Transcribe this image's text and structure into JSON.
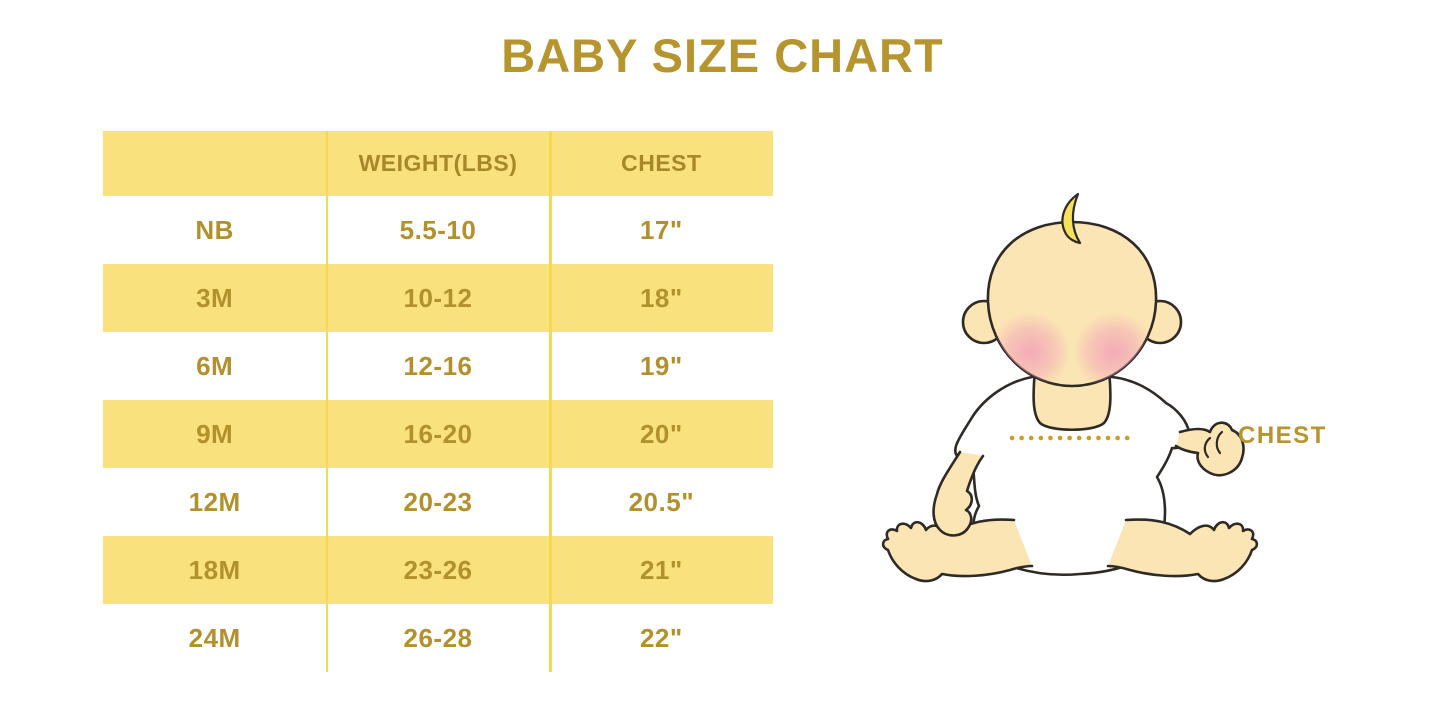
{
  "title": "BABY SIZE CHART",
  "colors": {
    "title_gold": "#B6952E",
    "header_text": "#A8872B",
    "cell_text": "#B2912C",
    "row_yellow": "#F9E17D",
    "divider_yellow": "#F8D84F",
    "dot_gold": "#C79E1E",
    "skin": "#FBE5B4",
    "hair": "#F6E15C",
    "blush": "#F2A0B8",
    "shirt": "#FFFFFF",
    "outline": "#2E2A26"
  },
  "chart_data": {
    "type": "table",
    "title": "BABY SIZE CHART",
    "columns": [
      "",
      "WEIGHT(LBS)",
      "CHEST"
    ],
    "rows": [
      {
        "size": "NB",
        "weight": "5.5-10",
        "chest": "17\"",
        "highlighted": false
      },
      {
        "size": "3M",
        "weight": "10-12",
        "chest": "18\"",
        "highlighted": true
      },
      {
        "size": "6M",
        "weight": "12-16",
        "chest": "19\"",
        "highlighted": false
      },
      {
        "size": "9M",
        "weight": "16-20",
        "chest": "20\"",
        "highlighted": true
      },
      {
        "size": "12M",
        "weight": "20-23",
        "chest": "20.5\"",
        "highlighted": false
      },
      {
        "size": "18M",
        "weight": "23-26",
        "chest": "21\"",
        "highlighted": true
      },
      {
        "size": "24M",
        "weight": "26-28",
        "chest": "22\"",
        "highlighted": false
      }
    ],
    "layout": "header row and alternating data rows highlighted yellow; yellow column divider lines; no outer border",
    "figure_label": "CHEST"
  }
}
